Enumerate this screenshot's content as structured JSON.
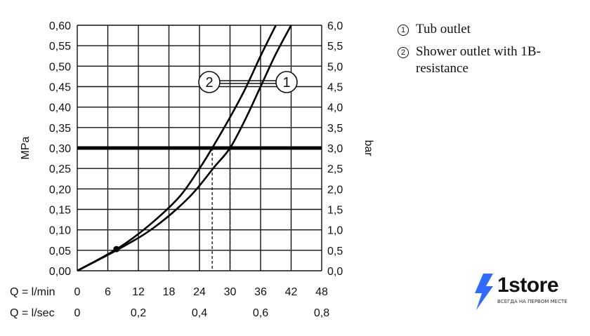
{
  "chart_data": {
    "type": "line",
    "left_axis": {
      "label": "MPa",
      "ticks": [
        "0,00",
        "0,05",
        "0,10",
        "0,15",
        "0,20",
        "0,25",
        "0,30",
        "0,35",
        "0,40",
        "0,45",
        "0,50",
        "0,55",
        "0,60"
      ],
      "range": [
        0,
        0.6
      ]
    },
    "right_axis": {
      "label": "bar",
      "ticks": [
        "0,0",
        "0,5",
        "1,0",
        "1,5",
        "2,0",
        "2,5",
        "3,0",
        "3,5",
        "4,0",
        "4,5",
        "5,0",
        "5,5",
        "6,0"
      ],
      "range": [
        0,
        6
      ]
    },
    "x_axis_lmin": {
      "label": "Q = l/min",
      "ticks": [
        "0",
        "6",
        "12",
        "18",
        "24",
        "30",
        "36",
        "42",
        "48"
      ],
      "range": [
        0,
        48
      ]
    },
    "x_axis_lsec": {
      "label": "Q = l/sec",
      "ticks": [
        "0",
        "0,2",
        "0,4",
        "0,6",
        "0,8"
      ]
    },
    "reference_line": {
      "y": 0.3
    },
    "series": [
      {
        "name": "1",
        "x": [
          0,
          8,
          15,
          22,
          27,
          30,
          33,
          36,
          39,
          42
        ],
        "y": [
          0,
          0.052,
          0.105,
          0.18,
          0.255,
          0.3,
          0.37,
          0.45,
          0.53,
          0.6
        ]
      },
      {
        "name": "2",
        "x": [
          0,
          8,
          14,
          20,
          24,
          26.5,
          30,
          33,
          36,
          39
        ],
        "y": [
          0,
          0.055,
          0.11,
          0.18,
          0.25,
          0.3,
          0.375,
          0.445,
          0.525,
          0.6
        ]
      }
    ],
    "drop_lines": [
      {
        "x": 26.5,
        "y": 0.3
      },
      {
        "x": 30,
        "y": 0.3
      }
    ],
    "grid": true
  },
  "legend": [
    {
      "num": "1",
      "text": "Tub outlet"
    },
    {
      "num": "2",
      "text": "Shower outlet with 1B-resistance"
    }
  ],
  "brand": {
    "name": "1store",
    "tagline": "ВСЕГДА НА ПЕРВОМ МЕСТЕ",
    "accent": "#2f6bff"
  }
}
